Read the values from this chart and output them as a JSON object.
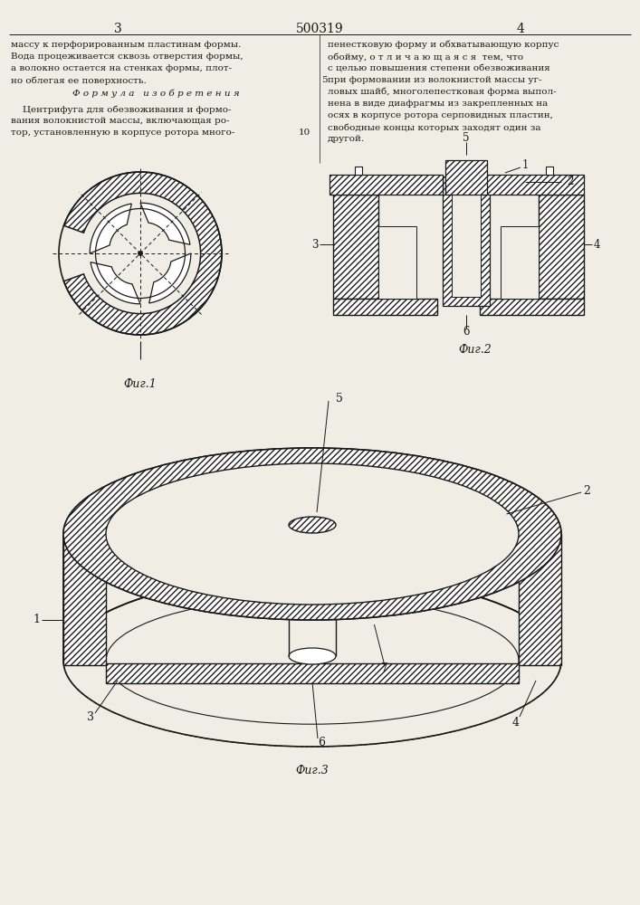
{
  "title": "500319",
  "page_left": "3",
  "page_right": "4",
  "fig1_label": "Фиг.1",
  "fig2_label": "Фиг.2",
  "fig3_label": "Фиг.3",
  "text_left": [
    "массу к перфорированным пластинам формы.",
    "Вода процеживается сквозь отверстия формы,",
    "а волокно остается на стенках формы, плот-",
    "но облегая ее поверхность."
  ],
  "formula_header": "Ф о р м у л а   и з о б р е т е н и я",
  "formula_text": [
    "    Центрифуга для обезвоживания и формо-",
    "вания волокнистой массы, включающая ро-",
    "тор, установленную в корпусе ротора много-"
  ],
  "formula_number": "10",
  "text_right": [
    "пенестковую форму и обхватывающую корпус",
    "обойму, о т л и ч а ю щ а я с я  тем, что",
    "с целью повышения степени обезвоживания",
    "при формовании из волокнистой массы уг-",
    "ловых шайб, многолепестковая форма выпол-",
    "нена в виде диафрагмы из закрепленных на",
    "осях в корпусе ротора серповидных пластин,",
    "свободные концы которых заходят один за",
    "другой."
  ],
  "text_right_num5": "5",
  "background_color": "#f0ede4",
  "line_color": "#1a1a1a",
  "text_color": "#1a1a1a"
}
